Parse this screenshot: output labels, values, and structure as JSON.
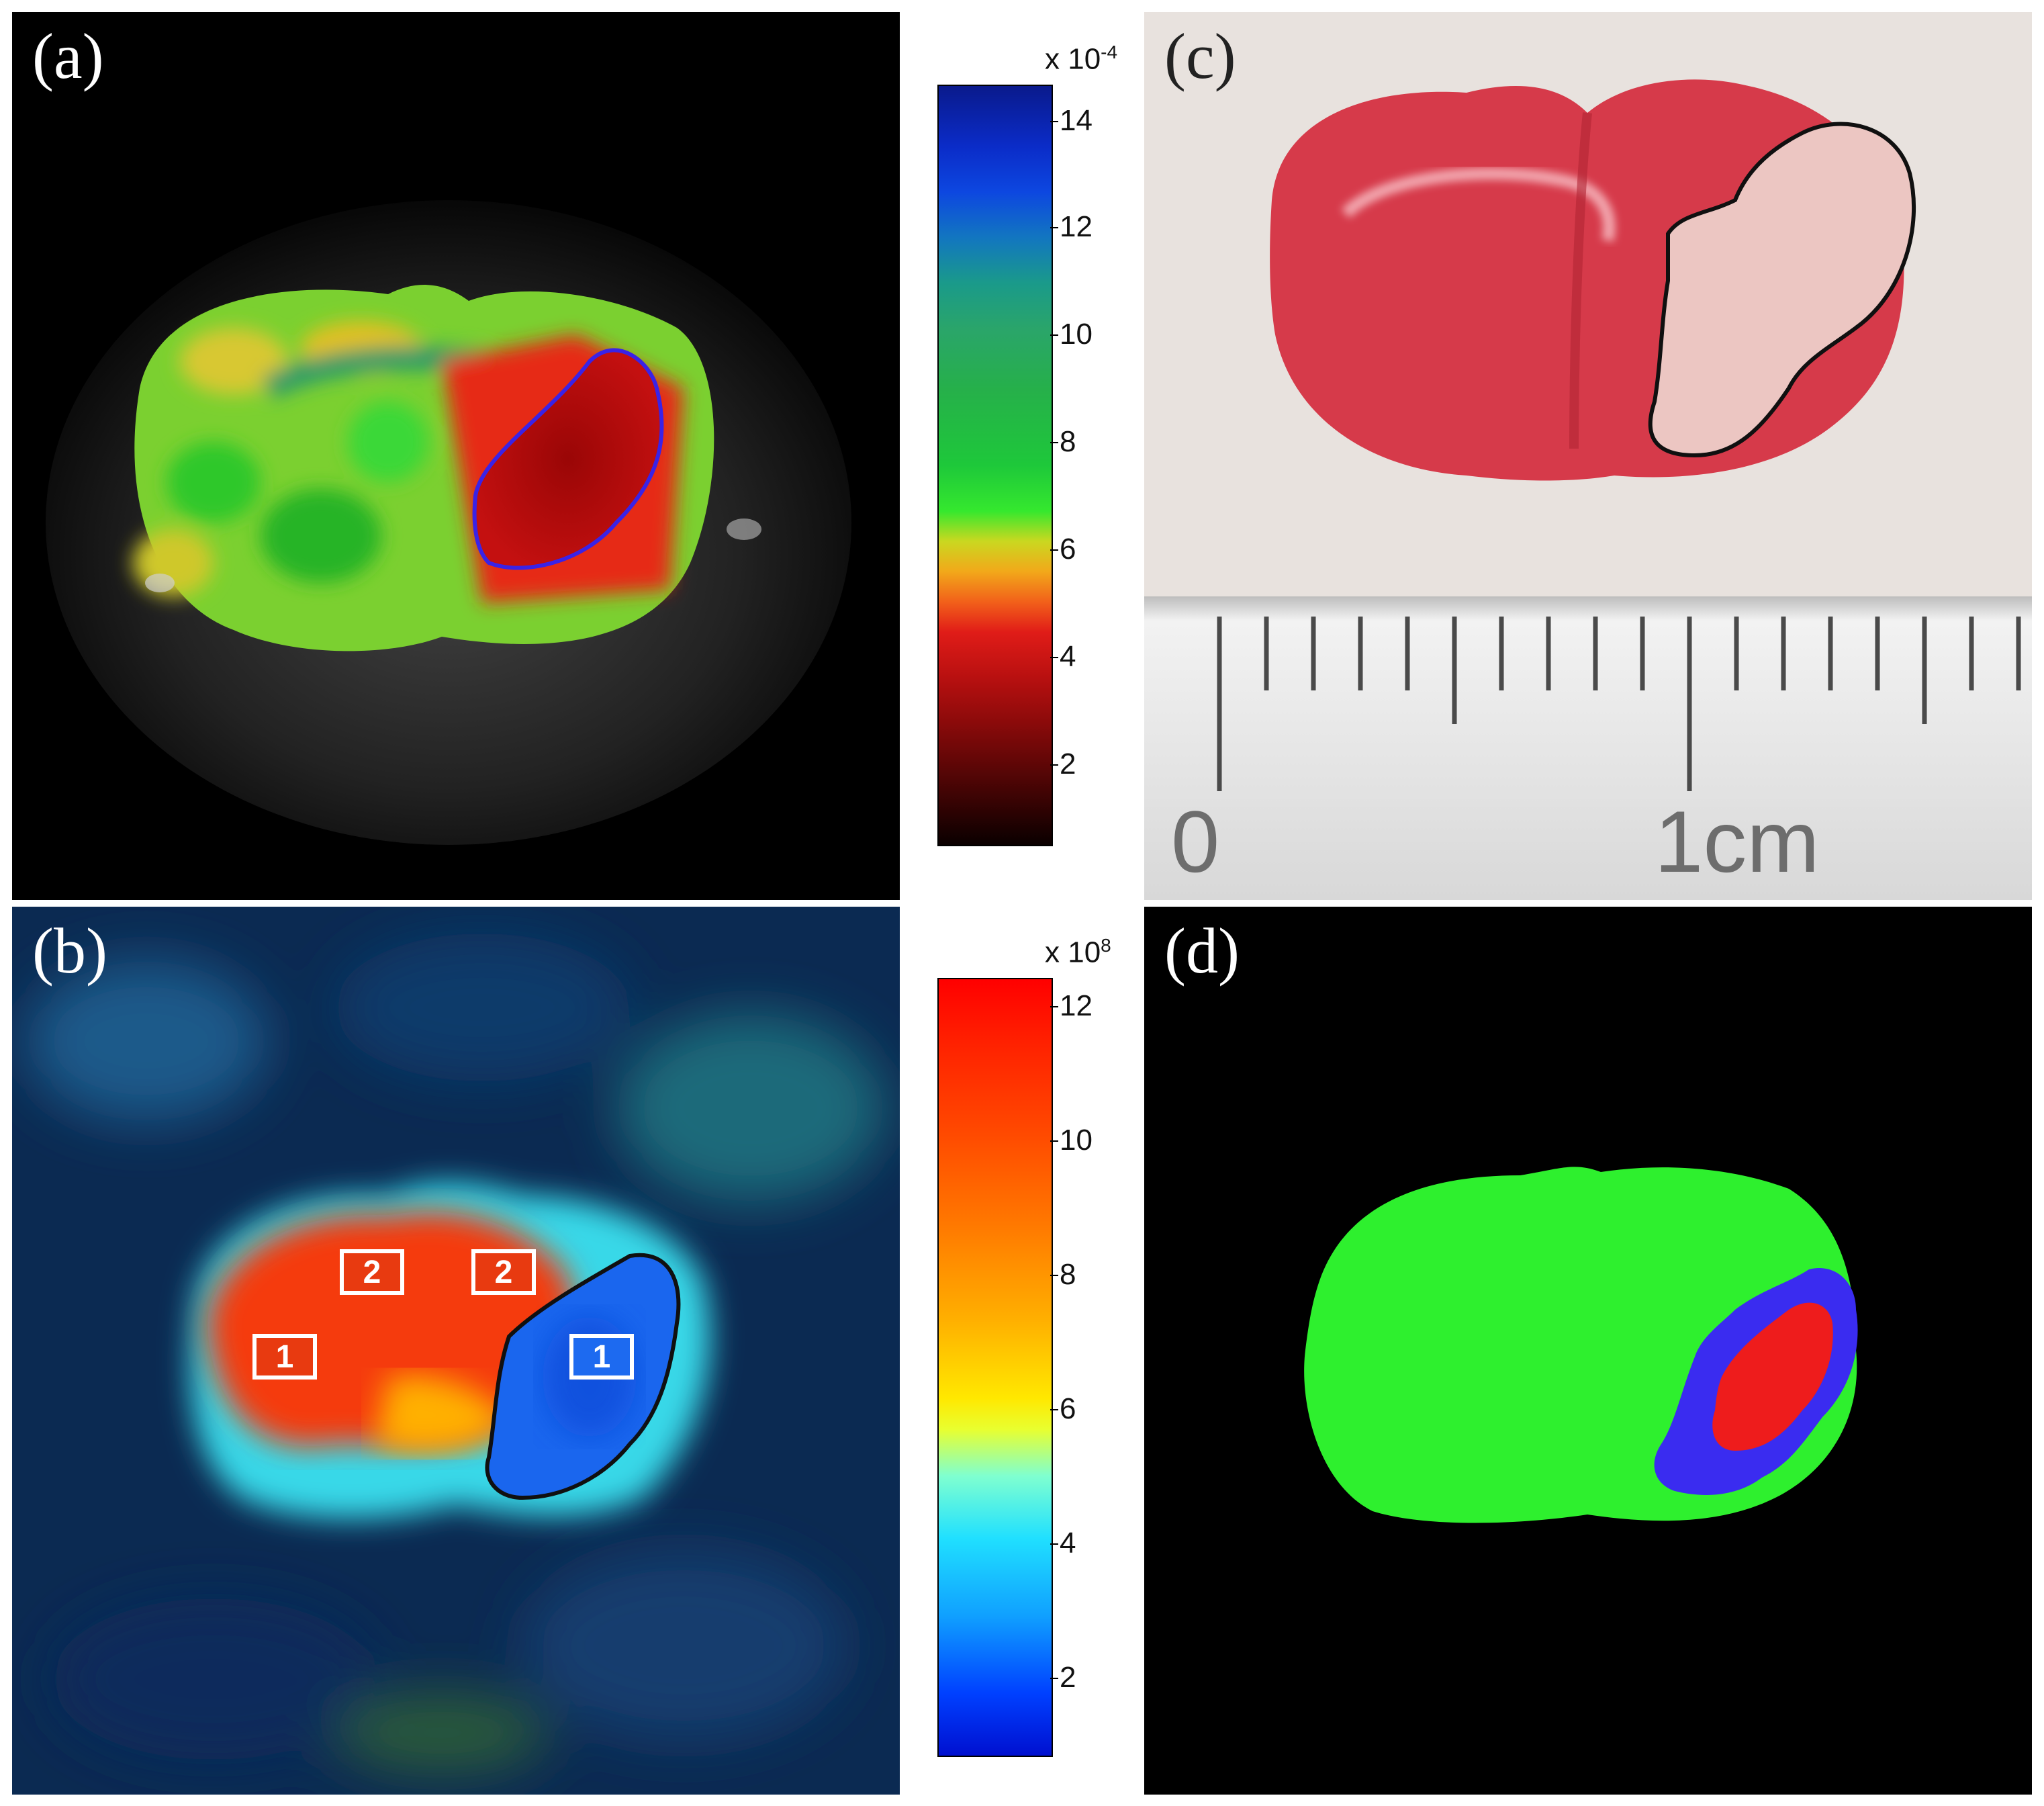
{
  "panels": {
    "a": {
      "letter": "(a)",
      "colorbar": {
        "multiplier_base": "x 10",
        "multiplier_exp": "-4",
        "ticks": [
          "14",
          "12",
          "10",
          "8",
          "6",
          "4",
          "2"
        ]
      }
    },
    "b": {
      "letter": "(b)",
      "colorbar": {
        "multiplier_base": "x 10",
        "multiplier_exp": "8",
        "ticks": [
          "12",
          "10",
          "8",
          "6",
          "4",
          "2"
        ]
      },
      "rois": [
        "2",
        "2",
        "1",
        "1"
      ]
    },
    "c": {
      "letter": "(c)",
      "ruler": {
        "label_zero": "0",
        "label_cm": "1cm"
      }
    },
    "d": {
      "letter": "(d)"
    }
  },
  "colors": {
    "healthy": "#2ef02e",
    "penumbra": "#3a2cf0",
    "core": "#ee1c1c",
    "background": "#000000"
  }
}
